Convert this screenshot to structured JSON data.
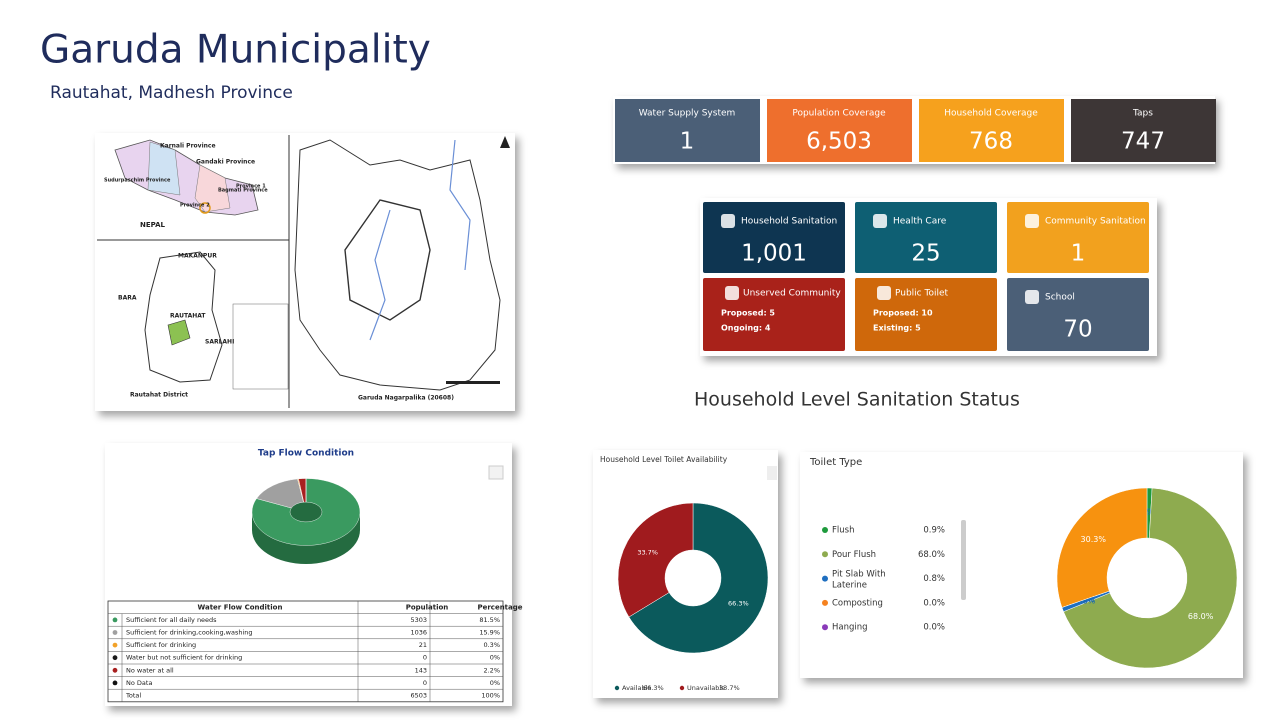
{
  "header": {
    "title": "Garuda Municipality",
    "subtitle": "Rautahat, Madhesh Province"
  },
  "map": {
    "labels": [
      "Karnali Province",
      "Gandaki Province",
      "Sudurpaschim Province",
      "Bagmati Province",
      "Province 1",
      "Province 2",
      "NEPAL",
      "MAKANPUR",
      "BARA",
      "RAUTAHAT",
      "SARLAHI",
      "Rautahat District",
      "Garuda Nagarpalika (20608)"
    ]
  },
  "kpis_top": [
    {
      "label": "Water Supply System",
      "value": "1",
      "color": "#4b5f77"
    },
    {
      "label": "Population Coverage",
      "value": "6,503",
      "color": "#ee6f2d"
    },
    {
      "label": "Household Coverage",
      "value": "768",
      "color": "#f6a11d"
    },
    {
      "label": "Taps",
      "value": "747",
      "color": "#3d3636"
    }
  ],
  "kpis_grid": [
    {
      "label": "Household Sanitation",
      "value": "1,001",
      "color": "#0e3551"
    },
    {
      "label": "Health Care",
      "value": "25",
      "color": "#0e5f73"
    },
    {
      "label": "Community Sanitation",
      "value": "1",
      "color": "#f2a11e"
    },
    {
      "label": "Unserved Community",
      "lines": [
        "Proposed: 5",
        "Ongoing: 4"
      ],
      "color": "#a9221a"
    },
    {
      "label": "Public Toilet",
      "lines": [
        "Proposed: 10",
        "Existing: 5"
      ],
      "color": "#cf680b"
    },
    {
      "label": "School",
      "value": "70",
      "color": "#4b5f77"
    }
  ],
  "section_title": "Household Level Sanitation Status",
  "tap_flow_table": {
    "header": [
      "Water Flow Condition",
      "Population",
      "Percentage"
    ],
    "rows": [
      [
        "Sufficient for all daily needs",
        "5303",
        "81.5%"
      ],
      [
        "Sufficient for drinking,cooking,washing",
        "1036",
        "15.9%"
      ],
      [
        "Sufficient for drinking",
        "21",
        "0.3%"
      ],
      [
        "Water but not sufficient for drinking",
        "0",
        "0%"
      ],
      [
        "No water at all",
        "143",
        "2.2%"
      ],
      [
        "No Data",
        "0",
        "0%"
      ]
    ],
    "total": [
      "Total",
      "6503",
      "100%"
    ]
  },
  "chart_data": [
    {
      "type": "pie3d",
      "title": "Tap Flow Condition",
      "values": [
        81.5,
        15.9,
        0.3,
        0,
        2.2,
        0
      ],
      "value_labels": [
        "81.5%",
        "15.9%",
        "0.3%",
        "0.0%",
        "2.2%",
        "0.0%"
      ],
      "colors": [
        "#3a9a60",
        "#a0a0a0",
        "#f2a22a",
        "#1a1a1a",
        "#a82020",
        "#111111"
      ]
    },
    {
      "type": "donut",
      "title": "Household Level Toilet Availability",
      "categories": [
        "Available",
        "Unavailable"
      ],
      "values": [
        66.3,
        33.7
      ],
      "value_labels": [
        "66.3%",
        "33.7%"
      ],
      "colors": [
        "#0b5a5c",
        "#a01b1e"
      ],
      "legend": "bottom"
    },
    {
      "type": "donut",
      "title": "Toilet Type",
      "categories": [
        "Flush",
        "Pour Flush",
        "Pit Slab With Laterine",
        "Composting",
        "Hanging",
        null
      ],
      "values": [
        0.9,
        68.0,
        0.8,
        0.0,
        0.0,
        30.3
      ],
      "value_labels": [
        "0.9%",
        "68.0%",
        "0.8%",
        "0.0%",
        "0.0%",
        "30.3%"
      ],
      "colors": [
        "#1e9a3c",
        "#8eab4f",
        "#1f6fc0",
        "#f5821f",
        "#8a3ab9",
        "#f7920f"
      ],
      "legend": "left"
    }
  ]
}
